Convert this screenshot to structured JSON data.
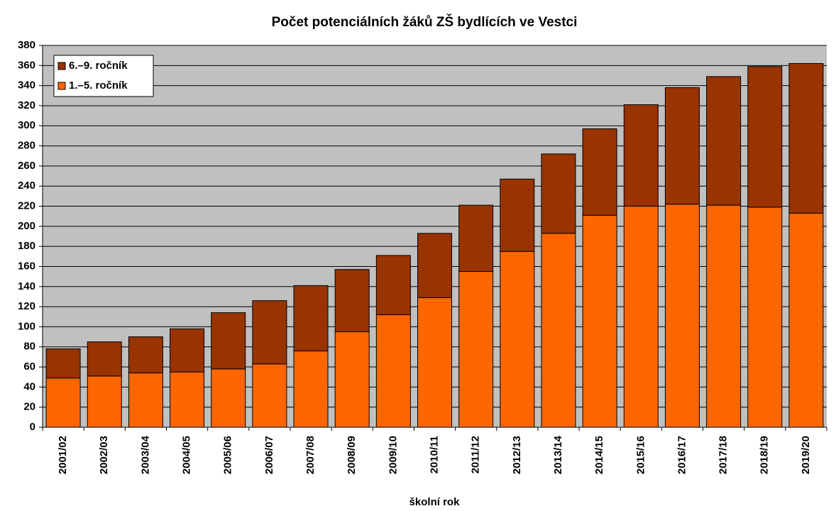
{
  "chart_data": {
    "type": "stacked_bar",
    "title": "Počet potenciálních žáků ZŠ bydlících ve Vestci",
    "x_label": "školní rok",
    "categories": [
      "2001/02",
      "2002/03",
      "2003/04",
      "2004/05",
      "2005/06",
      "2006/07",
      "2007/08",
      "2008/09",
      "2009/10",
      "2010/11",
      "2011/12",
      "2012/13",
      "2013/14",
      "2014/15",
      "2015/16",
      "2016/17",
      "2017/18",
      "2018/19",
      "2019/20"
    ],
    "series": [
      {
        "name": "1.–5. ročník",
        "color": "#ff6600",
        "values": [
          49,
          51,
          54,
          55,
          58,
          63,
          76,
          95,
          112,
          129,
          155,
          175,
          193,
          211,
          220,
          222,
          221,
          219,
          213
        ]
      },
      {
        "name": "6.–9. ročník",
        "color": "#993300",
        "values": [
          29,
          34,
          36,
          43,
          56,
          63,
          65,
          62,
          59,
          64,
          66,
          72,
          79,
          86,
          101,
          116,
          128,
          140,
          149
        ]
      }
    ],
    "ylim": [
      0,
      380
    ],
    "yticks": [
      0,
      20,
      40,
      60,
      80,
      100,
      120,
      140,
      160,
      180,
      200,
      220,
      240,
      260,
      280,
      300,
      320,
      340,
      360,
      380
    ],
    "grid": true,
    "legend": "top-left",
    "background": "#c0c0c0"
  }
}
